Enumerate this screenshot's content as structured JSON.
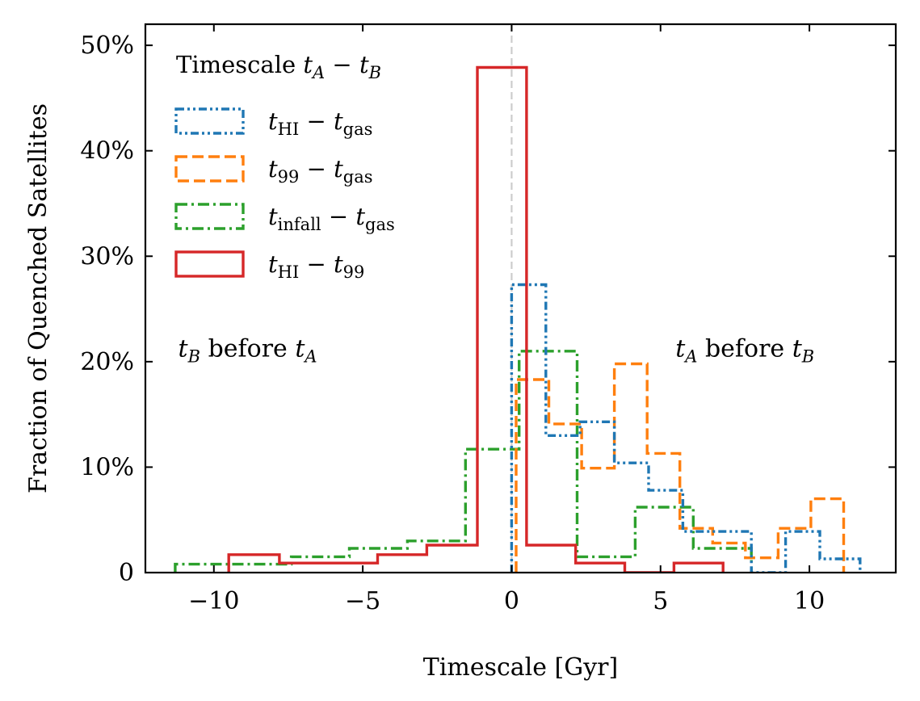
{
  "chart_data": {
    "type": "histogram",
    "xlabel": "Timescale [Gyr]",
    "ylabel": "Fraction of Quenched Satellites",
    "xlim": [
      -12.3,
      12.9
    ],
    "ylim": [
      0,
      52
    ],
    "xticks": [
      -10,
      -5,
      0,
      5,
      10
    ],
    "xtick_labels": [
      "−10",
      "−5",
      "0",
      "5",
      "10"
    ],
    "yticks": [
      0,
      10,
      20,
      30,
      40,
      50
    ],
    "ytick_labels": [
      "0",
      "10%",
      "20%",
      "30%",
      "40%",
      "50%"
    ],
    "reference_line": {
      "x": 0,
      "style": "dashed",
      "color": "#cccccc"
    },
    "legend": {
      "title_parts": {
        "main": "Timescale ",
        "t1": "t",
        "s1": "A",
        "op": " − ",
        "t2": "t",
        "s2": "B"
      },
      "placement": "upper-left"
    },
    "annotations": [
      {
        "parts": {
          "t1": "t",
          "s1": "B",
          "mid": " before ",
          "t2": "t",
          "s2": "A"
        },
        "x": -11.2,
        "y": 20.5
      },
      {
        "parts": {
          "t1": "t",
          "s1": "A",
          "mid": " before ",
          "t2": "t",
          "s2": "B"
        },
        "x": 5.5,
        "y": 20.5
      }
    ],
    "series": [
      {
        "name": "tHI-tgas",
        "label_parts": {
          "a": "t",
          "as": "HI",
          "op": " − ",
          "b": "t",
          "bs": "gas"
        },
        "color": "#1f77b4",
        "linestyle": "dashdotdot",
        "edges": [
          0.0,
          1.15,
          2.3,
          3.45,
          4.6,
          5.75,
          6.9,
          8.05,
          9.2,
          10.35,
          11.7
        ],
        "values": [
          27.3,
          13.0,
          14.3,
          10.4,
          7.8,
          3.9,
          3.9,
          0,
          3.9,
          1.3
        ]
      },
      {
        "name": "t99-tgas",
        "label_parts": {
          "a": "t",
          "as": "99",
          "op": " − ",
          "b": "t",
          "bs": "gas"
        },
        "color": "#ff7f0e",
        "linestyle": "dashed",
        "edges": [
          0.15,
          1.25,
          2.35,
          3.45,
          4.55,
          5.65,
          6.75,
          7.85,
          8.95,
          10.05,
          11.15
        ],
        "values": [
          18.3,
          14.1,
          9.9,
          19.8,
          11.3,
          4.2,
          2.8,
          1.4,
          4.2,
          7.0
        ]
      },
      {
        "name": "tinfall-tgas",
        "label_parts": {
          "a": "t",
          "as": "infall",
          "op": " − ",
          "b": "t",
          "bs": "gas"
        },
        "color": "#2ca02c",
        "linestyle": "dashdot",
        "edges": [
          -11.3,
          -9.35,
          -7.4,
          -5.45,
          -3.5,
          -1.55,
          0.25,
          2.2,
          4.15,
          6.1,
          8.05
        ],
        "values": [
          0.8,
          0.8,
          1.5,
          2.3,
          3.0,
          11.7,
          21.0,
          1.5,
          6.2,
          2.3
        ]
      },
      {
        "name": "tHI-t99",
        "label_parts": {
          "a": "t",
          "as": "HI",
          "op": " − ",
          "b": "t",
          "bs": "99"
        },
        "color": "#d62728",
        "linestyle": "solid",
        "edges": [
          -9.5,
          -7.8,
          -6.15,
          -4.5,
          -2.85,
          -1.15,
          0.5,
          2.15,
          3.8,
          5.45,
          7.1
        ],
        "values": [
          1.7,
          0.9,
          0.9,
          1.7,
          2.6,
          47.9,
          2.6,
          0.9,
          0,
          0.9
        ]
      }
    ]
  }
}
